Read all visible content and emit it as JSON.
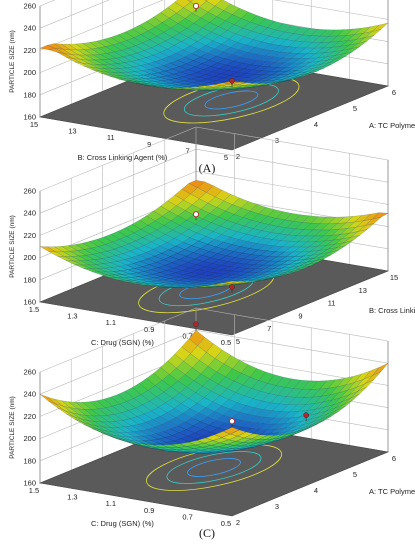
{
  "chart_data": [
    {
      "type": "surface",
      "panel_label": "(A)",
      "zlabel": "PARTICLE SIZE (nm)",
      "zticks": [
        "260",
        "240",
        "220",
        "200",
        "180",
        "160"
      ],
      "zlim": [
        160,
        260
      ],
      "x_axis": {
        "label": "A: TC Polymer (%)",
        "ticks": [
          "2",
          "3",
          "4",
          "5",
          "6"
        ]
      },
      "y_axis": {
        "label": "B: Cross Linking Agent (%)",
        "ticks": [
          "5",
          "7",
          "9",
          "11",
          "13",
          "15"
        ]
      },
      "surface_range": [
        182,
        222
      ],
      "design_points_shown": 2
    },
    {
      "type": "surface",
      "panel_label": "(B)",
      "zlabel": "PARTICLE SIZE (nm)",
      "zticks": [
        "260",
        "240",
        "220",
        "200",
        "180",
        "160"
      ],
      "zlim": [
        160,
        260
      ],
      "x_axis": {
        "label": "B: Cross Linking Agent (%)",
        "ticks": [
          "5",
          "7",
          "9",
          "11",
          "13",
          "15"
        ]
      },
      "y_axis": {
        "label": "C: Drug (SGN) (%)",
        "ticks": [
          "0.5",
          "0.7",
          "0.9",
          "1.1",
          "1.3",
          "1.5"
        ]
      },
      "surface_range": [
        176,
        212
      ],
      "design_points_shown": 2
    },
    {
      "type": "surface",
      "panel_label": "(C)",
      "zlabel": "PARTICLE SIZE (nm)",
      "zticks": [
        "260",
        "240",
        "220",
        "200",
        "180",
        "160"
      ],
      "zlim": [
        160,
        260
      ],
      "x_axis": {
        "label": "A: TC Polymer (%)",
        "ticks": [
          "2",
          "3",
          "4",
          "5",
          "6"
        ]
      },
      "y_axis": {
        "label": "C: Drug (SGN) (%)",
        "ticks": [
          "0.5",
          "0.7",
          "0.9",
          "1.1",
          "1.3",
          "1.5"
        ]
      },
      "surface_range": [
        182,
        240
      ],
      "design_points_shown": 3
    }
  ],
  "colors": {
    "low": "#1f3fbf",
    "mid_low": "#19b4c8",
    "mid": "#3ec84a",
    "mid_high": "#d6d618",
    "high": "#f08a14",
    "floor": "#5a5a5a",
    "design_point": "#b2262a"
  }
}
